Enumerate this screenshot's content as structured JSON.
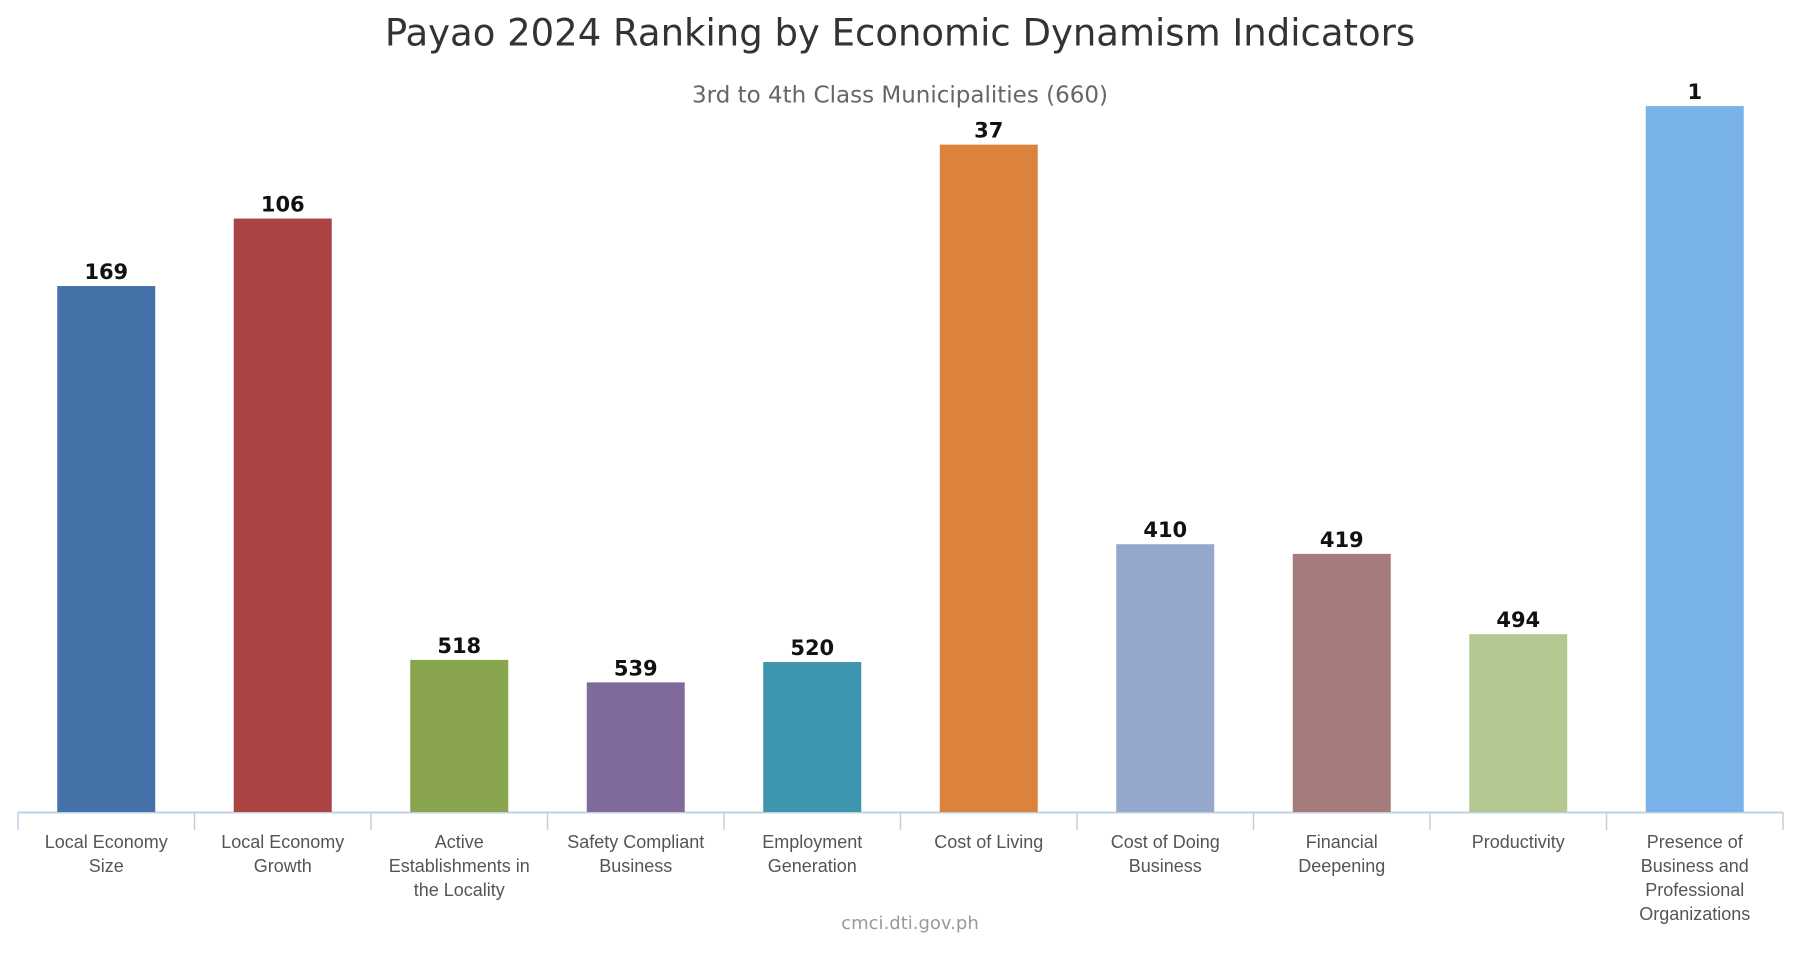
{
  "chart_data": {
    "type": "bar",
    "title": "Payao 2024 Ranking by Economic Dynamism Indicators",
    "subtitle": "3rd to 4th Class Municipalities (660)",
    "source": "cmci.dti.gov.ph",
    "categories": [
      "Local Economy Size",
      "Local Economy Growth",
      "Active Establishments in the Locality",
      "Safety Compliant Business",
      "Employment Generation",
      "Cost of Living",
      "Cost of Doing Business",
      "Financial Deepening",
      "Productivity",
      "Presence of Business and Professional Organizations"
    ],
    "values": [
      169,
      106,
      518,
      539,
      520,
      37,
      410,
      419,
      494,
      1
    ],
    "colors": [
      "#4472a8",
      "#a94442",
      "#88a44c",
      "#7f6a9b",
      "#3e96ae",
      "#db823d",
      "#94a8ce",
      "#a67b7b",
      "#b4c991",
      "#7ab3ea"
    ],
    "ylim": [
      660,
      0
    ]
  }
}
